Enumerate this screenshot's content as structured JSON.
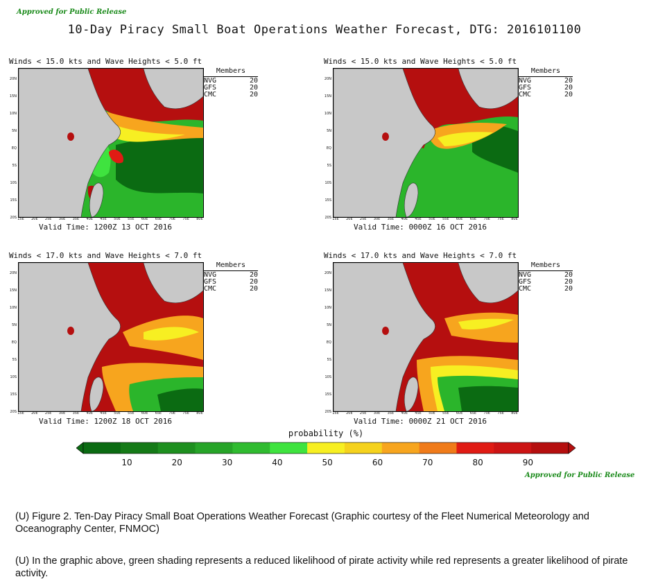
{
  "header": {
    "approved_top": "Approved for Public Release",
    "title": "10-Day Piracy Small Boat Operations Weather Forecast, DTG: 2016101100"
  },
  "members_header": "Members",
  "lat_labels": [
    "20N",
    "15N",
    "10N",
    "5N",
    "EQ",
    "5S",
    "10S",
    "15S",
    "20S"
  ],
  "lon_labels": [
    "15E",
    "20E",
    "25E",
    "30E",
    "35E",
    "40E",
    "45E",
    "50E",
    "55E",
    "60E",
    "65E",
    "70E",
    "75E",
    "80E"
  ],
  "panels": [
    {
      "title": "Winds < 15.0 kts and Wave Heights < 5.0 ft",
      "members": [
        {
          "name": "NVG",
          "count": "20"
        },
        {
          "name": "GFS",
          "count": "20"
        },
        {
          "name": "CMC",
          "count": "20"
        }
      ],
      "valid_time": "Valid Time: 1200Z 13 OCT 2016"
    },
    {
      "title": "Winds < 15.0 kts and Wave Heights < 5.0 ft",
      "members": [
        {
          "name": "NVG",
          "count": "20"
        },
        {
          "name": "GFS",
          "count": "20"
        },
        {
          "name": "CMC",
          "count": "20"
        }
      ],
      "valid_time": "Valid Time: 0000Z 16 OCT 2016"
    },
    {
      "title": "Winds < 17.0 kts and Wave Heights < 7.0 ft",
      "members": [
        {
          "name": "NVG",
          "count": "20"
        },
        {
          "name": "GFS",
          "count": "20"
        },
        {
          "name": "CMC",
          "count": "20"
        }
      ],
      "valid_time": "Valid Time: 1200Z 18 OCT 2016"
    },
    {
      "title": "Winds < 17.0 kts and Wave Heights < 7.0 ft",
      "members": [
        {
          "name": "NVG",
          "count": "20"
        },
        {
          "name": "GFS",
          "count": "20"
        },
        {
          "name": "CMC",
          "count": "20"
        }
      ],
      "valid_time": "Valid Time: 0000Z 21 OCT 2016"
    }
  ],
  "legend": {
    "title": "probability (%)",
    "ticks": [
      "10",
      "20",
      "30",
      "40",
      "50",
      "60",
      "70",
      "80",
      "90"
    ],
    "colors": {
      "dark_green": "#0b6b12",
      "green": "#2bb52b",
      "light_green": "#3fe33f",
      "yellow": "#f7ef22",
      "orange": "#f7a51e",
      "red": "#e01b14",
      "dark_red": "#b50f0f",
      "land": "#c8c8c8"
    }
  },
  "approved_bottom": "Approved for Public Release",
  "captions": [
    "(U) Figure 2. Ten-Day Piracy Small Boat Operations Weather Forecast (Graphic courtesy of the Fleet Numerical Meteorology and Oceanography Center, FNMOC)",
    "(U) In the graphic above, green shading represents a reduced likelihood of pirate activity while red represents a greater likelihood of pirate activity."
  ]
}
